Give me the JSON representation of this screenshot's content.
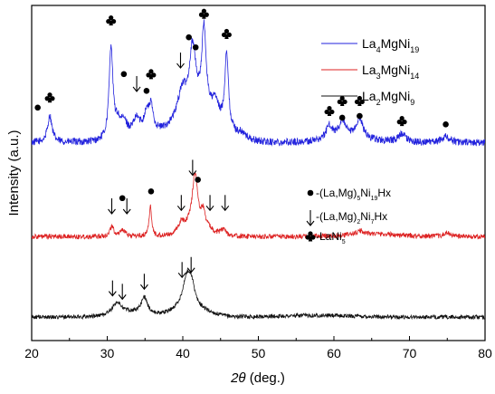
{
  "chart_data": {
    "type": "line",
    "title": "",
    "xlabel": "2θ (deg.)",
    "xlabel_parts": {
      "italic": "2θ",
      "rest": " (deg.)"
    },
    "ylabel": "Intensity (a.u.)",
    "xlim": [
      20,
      80
    ],
    "ylim": [
      0,
      100
    ],
    "xticks": [
      20,
      30,
      40,
      50,
      60,
      70,
      80
    ],
    "y_ticks_shown": false,
    "grid": false,
    "legend_position": "top-right",
    "series": [
      {
        "name": "La4MgNi19",
        "label_parts": [
          [
            "La",
            ""
          ],
          [
            "4",
            "sub"
          ],
          [
            "MgNi",
            ""
          ],
          [
            "19",
            "sub"
          ]
        ],
        "color": "#2222dd",
        "baseline": 59,
        "noise": 1.1,
        "peaks": [
          {
            "x": 22.4,
            "h": 8,
            "w": 0.35
          },
          {
            "x": 30.5,
            "h": 28,
            "w": 0.3
          },
          {
            "x": 31.4,
            "h": 4,
            "w": 0.4
          },
          {
            "x": 32.2,
            "h": 4,
            "w": 0.5
          },
          {
            "x": 33.9,
            "h": 4,
            "w": 0.5
          },
          {
            "x": 35.2,
            "h": 5,
            "w": 0.4
          },
          {
            "x": 35.8,
            "h": 7,
            "w": 0.35
          },
          {
            "x": 39.9,
            "h": 8,
            "w": 0.7
          },
          {
            "x": 41.3,
            "h": 19,
            "w": 0.5
          },
          {
            "x": 42.8,
            "h": 24,
            "w": 0.35
          },
          {
            "x": 44.3,
            "h": 5,
            "w": 0.5
          },
          {
            "x": 45.8,
            "h": 23,
            "w": 0.28
          },
          {
            "x": 47.8,
            "h": 1.5,
            "w": 0.7
          },
          {
            "x": 59.4,
            "h": 4,
            "w": 0.5
          },
          {
            "x": 61.1,
            "h": 5,
            "w": 0.5
          },
          {
            "x": 63.4,
            "h": 6,
            "w": 0.5
          },
          {
            "x": 69.0,
            "h": 2.5,
            "w": 0.6
          },
          {
            "x": 74.8,
            "h": 2,
            "w": 0.6
          }
        ],
        "humps": [
          {
            "x": 42.0,
            "h": 9,
            "w": 4.0
          },
          {
            "x": 34.5,
            "h": 2.5,
            "w": 3.0
          },
          {
            "x": 62.0,
            "h": 1.5,
            "w": 4.0
          }
        ]
      },
      {
        "name": "La3MgNi14",
        "label_parts": [
          [
            "La",
            ""
          ],
          [
            "3",
            "sub"
          ],
          [
            "MgNi",
            ""
          ],
          [
            "14",
            "sub"
          ]
        ],
        "color": "#dd2222",
        "baseline": 31,
        "noise": 0.75,
        "peaks": [
          {
            "x": 30.6,
            "h": 3,
            "w": 0.3
          },
          {
            "x": 32.0,
            "h": 2,
            "w": 0.4
          },
          {
            "x": 35.7,
            "h": 9,
            "w": 0.2
          },
          {
            "x": 39.8,
            "h": 2.5,
            "w": 0.45
          },
          {
            "x": 41.6,
            "h": 15,
            "w": 0.4
          },
          {
            "x": 42.7,
            "h": 4,
            "w": 0.3
          },
          {
            "x": 45.4,
            "h": 2,
            "w": 0.4
          },
          {
            "x": 63.5,
            "h": 1,
            "w": 0.6
          },
          {
            "x": 75.0,
            "h": 1,
            "w": 0.6
          }
        ],
        "humps": [
          {
            "x": 41.8,
            "h": 4,
            "w": 2.2
          },
          {
            "x": 65.0,
            "h": 0.8,
            "w": 5.0
          }
        ]
      },
      {
        "name": "La2MgNi9",
        "label_parts": [
          [
            "La",
            ""
          ],
          [
            "2",
            "sub"
          ],
          [
            "MgNi",
            ""
          ],
          [
            "9",
            "sub"
          ]
        ],
        "color": "#111111",
        "baseline": 7,
        "noise": 0.6,
        "peaks": [
          {
            "x": 31.3,
            "h": 3.5,
            "w": 0.7
          },
          {
            "x": 34.9,
            "h": 5,
            "w": 0.5
          },
          {
            "x": 40.6,
            "h": 10,
            "w": 0.7
          },
          {
            "x": 41.2,
            "h": 4,
            "w": 0.4
          }
        ],
        "humps": [
          {
            "x": 33.0,
            "h": 1.2,
            "w": 3.0
          },
          {
            "x": 41.0,
            "h": 2.5,
            "w": 3.0
          },
          {
            "x": 58.0,
            "h": 0.5,
            "w": 6.0
          }
        ]
      }
    ],
    "markers": [
      {
        "x": 20.8,
        "y": 69.5,
        "symbol": "dot"
      },
      {
        "x": 22.4,
        "y": 72.5,
        "symbol": "club"
      },
      {
        "x": 30.5,
        "y": 95.5,
        "symbol": "club"
      },
      {
        "x": 32.2,
        "y": 79.5,
        "symbol": "dot"
      },
      {
        "x": 33.9,
        "y": 76.5,
        "symbol": "arrow"
      },
      {
        "x": 35.2,
        "y": 74.5,
        "symbol": "dot"
      },
      {
        "x": 35.8,
        "y": 79.5,
        "symbol": "club"
      },
      {
        "x": 39.7,
        "y": 83.5,
        "symbol": "arrow"
      },
      {
        "x": 40.8,
        "y": 90.5,
        "symbol": "dot"
      },
      {
        "x": 41.7,
        "y": 87.5,
        "symbol": "dot"
      },
      {
        "x": 42.8,
        "y": 97.5,
        "symbol": "club"
      },
      {
        "x": 45.8,
        "y": 91.5,
        "symbol": "club"
      },
      {
        "x": 59.4,
        "y": 68.5,
        "symbol": "club"
      },
      {
        "x": 61.1,
        "y": 71.5,
        "symbol": "club"
      },
      {
        "x": 61.1,
        "y": 66.5,
        "symbol": "dot"
      },
      {
        "x": 63.4,
        "y": 71.5,
        "symbol": "club"
      },
      {
        "x": 63.4,
        "y": 67.0,
        "symbol": "dot"
      },
      {
        "x": 69.0,
        "y": 65.5,
        "symbol": "club"
      },
      {
        "x": 74.8,
        "y": 64.5,
        "symbol": "dot"
      },
      {
        "x": 30.6,
        "y": 40.0,
        "symbol": "arrow"
      },
      {
        "x": 32.0,
        "y": 42.5,
        "symbol": "dot"
      },
      {
        "x": 32.6,
        "y": 40.0,
        "symbol": "arrow"
      },
      {
        "x": 35.8,
        "y": 44.5,
        "symbol": "dot"
      },
      {
        "x": 39.8,
        "y": 41.0,
        "symbol": "arrow"
      },
      {
        "x": 41.3,
        "y": 51.5,
        "symbol": "arrow"
      },
      {
        "x": 42.0,
        "y": 48.0,
        "symbol": "dot"
      },
      {
        "x": 43.6,
        "y": 41.0,
        "symbol": "arrow"
      },
      {
        "x": 45.6,
        "y": 41.0,
        "symbol": "arrow"
      },
      {
        "x": 30.7,
        "y": 15.5,
        "symbol": "arrow"
      },
      {
        "x": 32.0,
        "y": 14.5,
        "symbol": "arrow"
      },
      {
        "x": 34.9,
        "y": 17.5,
        "symbol": "arrow"
      },
      {
        "x": 39.9,
        "y": 21.0,
        "symbol": "arrow"
      },
      {
        "x": 41.1,
        "y": 22.5,
        "symbol": "arrow"
      }
    ],
    "phase_legend": [
      {
        "symbol": "dot",
        "parts": [
          [
            "-(La,Mg)",
            ""
          ],
          [
            "5",
            "sub"
          ],
          [
            "Ni",
            ""
          ],
          [
            "19",
            "sub"
          ],
          [
            "Hx",
            ""
          ]
        ]
      },
      {
        "symbol": "arrow",
        "parts": [
          [
            "-(La,Mg)",
            ""
          ],
          [
            "2",
            "sub"
          ],
          [
            "Ni",
            ""
          ],
          [
            "7",
            "sub"
          ],
          [
            "Hx",
            ""
          ]
        ]
      },
      {
        "symbol": "club",
        "parts": [
          [
            "-LaNi",
            ""
          ],
          [
            "5",
            "sub"
          ]
        ]
      }
    ]
  }
}
